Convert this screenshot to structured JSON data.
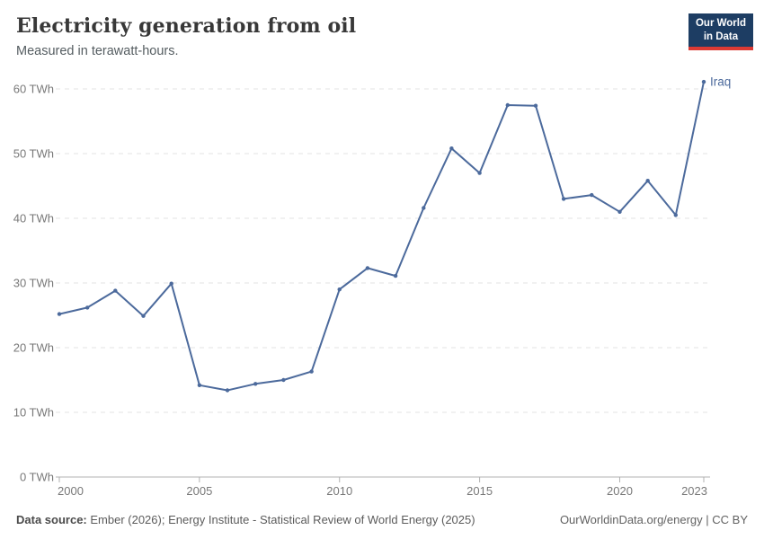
{
  "header": {
    "title": "Electricity generation from oil",
    "subtitle": "Measured in terawatt-hours.",
    "logo_line1": "Our World",
    "logo_line2": "in Data"
  },
  "chart_data": {
    "type": "line",
    "title": "Electricity generation from oil",
    "subtitle": "Measured in terawatt-hours.",
    "unit": "TWh",
    "x": [
      2000,
      2001,
      2002,
      2003,
      2004,
      2005,
      2006,
      2007,
      2008,
      2009,
      2010,
      2011,
      2012,
      2013,
      2014,
      2015,
      2016,
      2017,
      2018,
      2019,
      2020,
      2021,
      2022,
      2023
    ],
    "series": [
      {
        "name": "Iraq",
        "color": "#4c6a9c",
        "values": [
          25.2,
          26.2,
          28.8,
          24.9,
          29.9,
          14.2,
          13.4,
          14.4,
          15.0,
          16.3,
          29.0,
          32.3,
          31.1,
          41.6,
          50.8,
          47.0,
          57.5,
          57.4,
          43.0,
          43.6,
          41.0,
          45.8,
          40.5,
          61.1
        ]
      }
    ],
    "xlim": [
      2000,
      2023
    ],
    "ylim": [
      0,
      60
    ],
    "x_ticks": [
      2000,
      2005,
      2010,
      2015,
      2020,
      2023
    ],
    "y_ticks": [
      0,
      10,
      20,
      30,
      40,
      50,
      60
    ],
    "y_tick_labels": [
      "0 TWh",
      "10 TWh",
      "20 TWh",
      "30 TWh",
      "40 TWh",
      "50 TWh",
      "60 TWh"
    ],
    "grid": "horizontal-dashed",
    "legend_position": "end-of-line-label",
    "end_label": "Iraq",
    "markers": true
  },
  "footer": {
    "source_label": "Data source:",
    "source_text": " Ember (2026); Energy Institute - Statistical Review of World Energy (2025)",
    "url_license": "OurWorldinData.org/energy | CC BY"
  },
  "colors": {
    "line": "#4c6a9c",
    "grid": "#e3e3e3",
    "axis": "#b0b0b0",
    "tick_text": "#787878",
    "logo_bg": "#1d3d63",
    "logo_accent": "#dc3a34"
  }
}
